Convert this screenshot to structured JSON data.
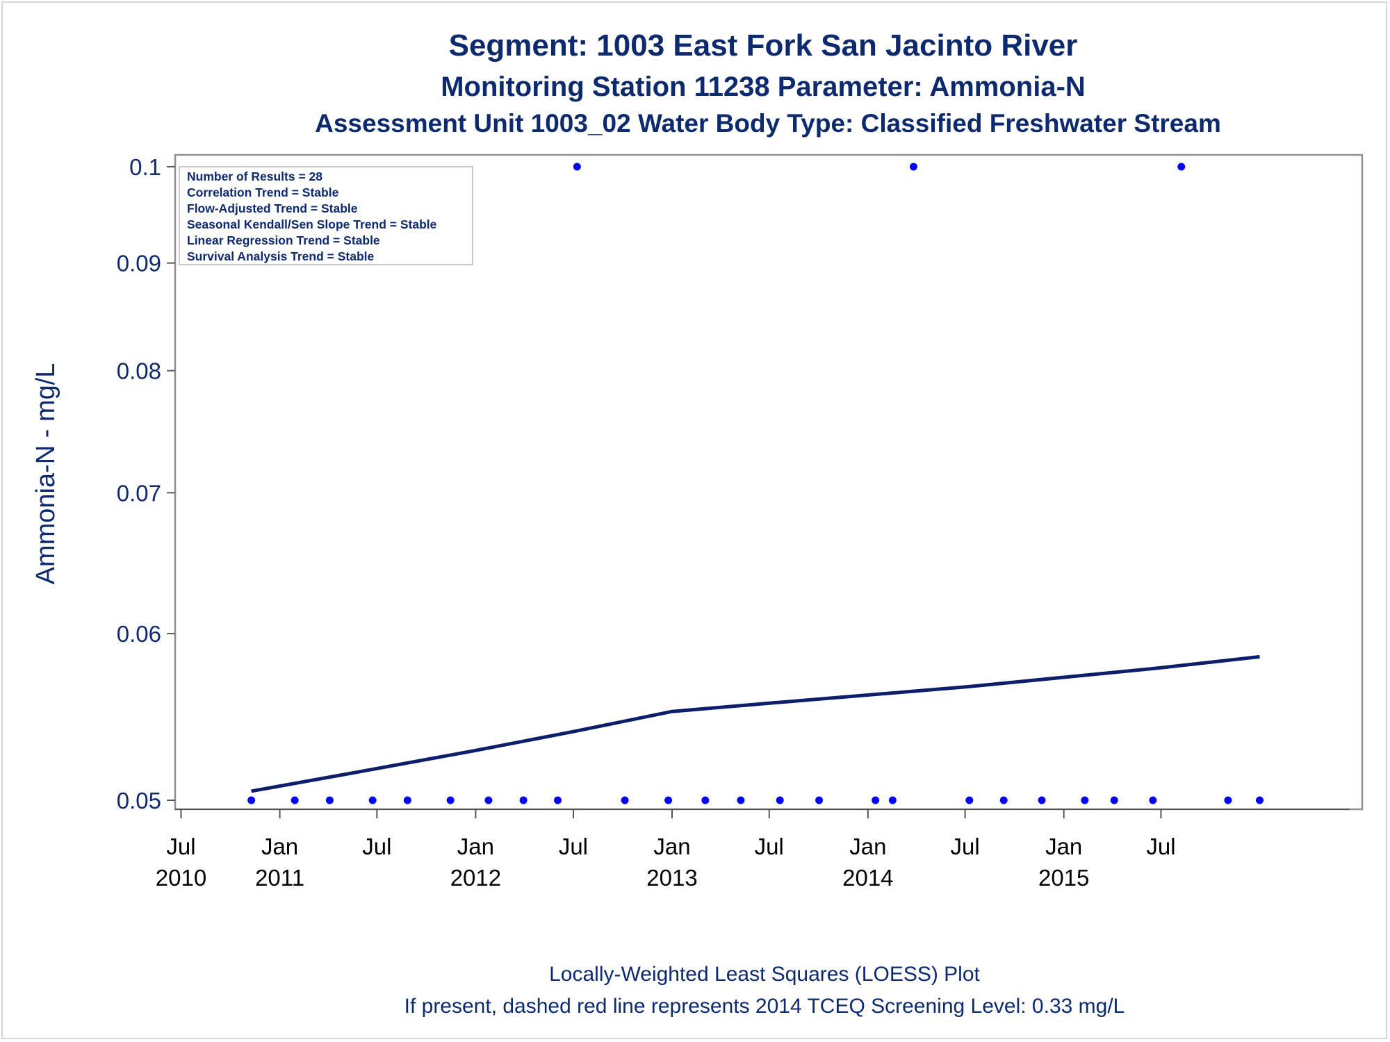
{
  "chart_data": {
    "type": "scatter",
    "title": "Segment: 1003  East Fork San Jacinto River",
    "subtitle1": "Monitoring Station 11238 Parameter: Ammonia-N",
    "subtitle2": "Assessment Unit 1003_02   Water Body Type: Classified Freshwater Stream",
    "ylabel": "Ammonia-N - mg/L",
    "xlabel": "",
    "y_scale": "log",
    "ylim": [
      0.05,
      0.1
    ],
    "xlim": [
      "2010-06-20",
      "2016-07-10"
    ],
    "y_ticks": [
      {
        "value": 0.05,
        "label": "0.05"
      },
      {
        "value": 0.06,
        "label": "0.06"
      },
      {
        "value": 0.07,
        "label": "0.07"
      },
      {
        "value": 0.08,
        "label": "0.08"
      },
      {
        "value": 0.09,
        "label": "0.09"
      },
      {
        "value": 0.1,
        "label": "0.1"
      }
    ],
    "x_ticks": [
      {
        "date": "2010-07-01",
        "label1": "Jul",
        "label2": "2010"
      },
      {
        "date": "2011-01-01",
        "label1": "Jan",
        "label2": "2011"
      },
      {
        "date": "2011-07-01",
        "label1": "Jul",
        "label2": ""
      },
      {
        "date": "2012-01-01",
        "label1": "Jan",
        "label2": "2012"
      },
      {
        "date": "2012-07-01",
        "label1": "Jul",
        "label2": ""
      },
      {
        "date": "2013-01-01",
        "label1": "Jan",
        "label2": "2013"
      },
      {
        "date": "2013-07-01",
        "label1": "Jul",
        "label2": ""
      },
      {
        "date": "2014-01-01",
        "label1": "Jan",
        "label2": "2014"
      },
      {
        "date": "2014-07-01",
        "label1": "Jul",
        "label2": ""
      },
      {
        "date": "2015-01-01",
        "label1": "Jan",
        "label2": "2015"
      },
      {
        "date": "2015-07-01",
        "label1": "Jul",
        "label2": ""
      }
    ],
    "series": [
      {
        "kind": "points",
        "color": "#0000ff",
        "points": [
          {
            "x": "2010-11-09",
            "y": 0.05
          },
          {
            "x": "2011-01-29",
            "y": 0.05
          },
          {
            "x": "2011-04-04",
            "y": 0.05
          },
          {
            "x": "2011-06-23",
            "y": 0.05
          },
          {
            "x": "2011-08-27",
            "y": 0.05
          },
          {
            "x": "2011-11-15",
            "y": 0.05
          },
          {
            "x": "2012-01-25",
            "y": 0.05
          },
          {
            "x": "2012-03-30",
            "y": 0.05
          },
          {
            "x": "2012-06-02",
            "y": 0.05
          },
          {
            "x": "2012-07-08",
            "y": 0.1
          },
          {
            "x": "2012-10-05",
            "y": 0.05
          },
          {
            "x": "2012-12-25",
            "y": 0.05
          },
          {
            "x": "2013-03-04",
            "y": 0.05
          },
          {
            "x": "2013-05-09",
            "y": 0.05
          },
          {
            "x": "2013-07-21",
            "y": 0.05
          },
          {
            "x": "2013-10-02",
            "y": 0.05
          },
          {
            "x": "2014-01-15",
            "y": 0.05
          },
          {
            "x": "2014-02-16",
            "y": 0.05
          },
          {
            "x": "2014-03-27",
            "y": 0.1
          },
          {
            "x": "2014-07-09",
            "y": 0.05
          },
          {
            "x": "2014-09-11",
            "y": 0.05
          },
          {
            "x": "2014-11-21",
            "y": 0.05
          },
          {
            "x": "2015-02-09",
            "y": 0.05
          },
          {
            "x": "2015-04-05",
            "y": 0.05
          },
          {
            "x": "2015-06-16",
            "y": 0.05
          },
          {
            "x": "2015-08-08",
            "y": 0.1
          },
          {
            "x": "2015-11-03",
            "y": 0.05
          },
          {
            "x": "2016-01-01",
            "y": 0.05
          }
        ]
      },
      {
        "kind": "loess",
        "color": "#0d1f6b",
        "points": [
          {
            "x": "2010-11-09",
            "y": 0.0505
          },
          {
            "x": "2011-06-01",
            "y": 0.0516
          },
          {
            "x": "2012-01-01",
            "y": 0.0528
          },
          {
            "x": "2012-07-01",
            "y": 0.0539
          },
          {
            "x": "2013-01-01",
            "y": 0.0551
          },
          {
            "x": "2013-07-01",
            "y": 0.0556
          },
          {
            "x": "2014-01-01",
            "y": 0.0561
          },
          {
            "x": "2014-07-01",
            "y": 0.0566
          },
          {
            "x": "2015-01-01",
            "y": 0.0572
          },
          {
            "x": "2015-07-01",
            "y": 0.0578
          },
          {
            "x": "2016-01-01",
            "y": 0.0585
          }
        ]
      }
    ],
    "inset_box": {
      "lines": [
        "Number of Results = 28",
        "Correlation Trend = Stable",
        "Flow-Adjusted Trend = Stable",
        "Seasonal Kendall/Sen Slope Trend = Stable",
        "Linear Regression Trend = Stable",
        "Survival Analysis Trend = Stable"
      ],
      "placement": "top-left"
    },
    "footnotes": [
      "Locally-Weighted Least Squares (LOESS) Plot",
      "If present, dashed red line represents 2014 TCEQ Screening Level: 0.33 mg/L"
    ],
    "colors": {
      "title": "#0d2a6e",
      "axis_label": "#0d2a6e",
      "tick_label_y": "#0d2a6e",
      "tick_label_x": "#000000",
      "frame": "#8f8f8f",
      "points": "#0000ff",
      "loess": "#0d1f6b"
    }
  }
}
